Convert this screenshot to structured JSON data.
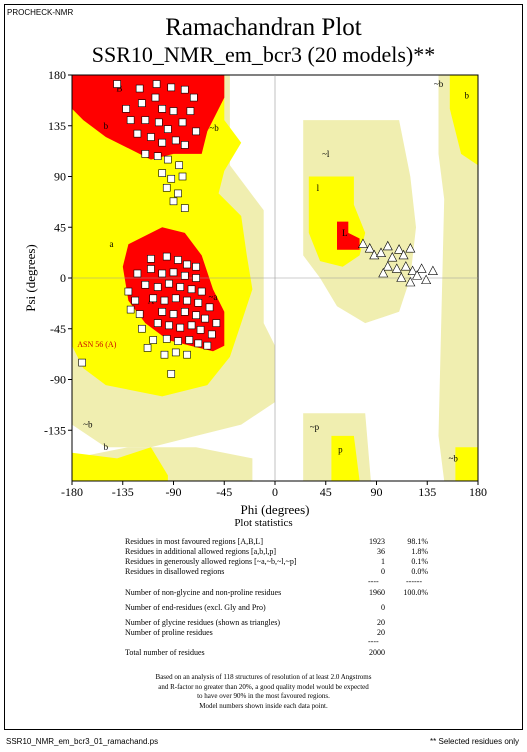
{
  "header": {
    "program": "PROCHECK-NMR",
    "title": "Ramachandran Plot",
    "subtitle": "SSR10_NMR_em_bcr3 (20 models)**"
  },
  "footer": {
    "filename": "SSR10_NMR_em_bcr3_01_ramachand.ps",
    "note": "** Selected residues only"
  },
  "colors": {
    "core": "#ff0000",
    "allowed": "#ffff00",
    "generous": "#f0eeb0",
    "disallowed": "#ffffff"
  },
  "chart_data": {
    "type": "scatter",
    "xlabel": "Phi (degrees)",
    "ylabel": "Psi (degrees)",
    "xlim": [
      -180,
      180
    ],
    "ylim": [
      -180,
      180
    ],
    "xticks": [
      "-180",
      "-135",
      "-90",
      "-45",
      "0",
      "45",
      "90",
      "135",
      "180"
    ],
    "yticks": [
      "180",
      "135",
      "90",
      "45",
      "0",
      "-45",
      "-90",
      "-135"
    ],
    "region_labels": [
      {
        "text": "B",
        "phi": -138,
        "psi": 168
      },
      {
        "text": "b",
        "phi": -150,
        "psi": 135
      },
      {
        "text": "~b",
        "phi": -54,
        "psi": 133
      },
      {
        "text": "~b",
        "phi": -166,
        "psi": -130
      },
      {
        "text": "b",
        "phi": -150,
        "psi": -150
      },
      {
        "text": "a",
        "phi": -145,
        "psi": 30
      },
      {
        "text": "A",
        "phi": -110,
        "psi": -20
      },
      {
        "text": "~a",
        "phi": -55,
        "psi": -17
      },
      {
        "text": "~l",
        "phi": 45,
        "psi": 110
      },
      {
        "text": "l",
        "phi": 38,
        "psi": 80
      },
      {
        "text": "L",
        "phi": 62,
        "psi": 40
      },
      {
        "text": "~p",
        "phi": 35,
        "psi": -132
      },
      {
        "text": "p",
        "phi": 58,
        "psi": -152
      },
      {
        "text": "~b",
        "phi": 145,
        "psi": 172
      },
      {
        "text": "b",
        "phi": 170,
        "psi": 162
      },
      {
        "text": "~b",
        "phi": 158,
        "psi": -160
      }
    ],
    "outlier_label": "ASN 56 (A)",
    "series": [
      {
        "marker": "square",
        "points": [
          [
            -140,
            172
          ],
          [
            -120,
            168
          ],
          [
            -105,
            172
          ],
          [
            -92,
            169
          ],
          [
            -80,
            167
          ],
          [
            -72,
            160
          ],
          [
            -132,
            150
          ],
          [
            -118,
            155
          ],
          [
            -106,
            160
          ],
          [
            -100,
            150
          ],
          [
            -90,
            148
          ],
          [
            -75,
            148
          ],
          [
            -128,
            140
          ],
          [
            -115,
            140
          ],
          [
            -103,
            138
          ],
          [
            -95,
            132
          ],
          [
            -82,
            138
          ],
          [
            -70,
            130
          ],
          [
            -122,
            128
          ],
          [
            -110,
            125
          ],
          [
            -100,
            120
          ],
          [
            -88,
            122
          ],
          [
            -80,
            118
          ],
          [
            -115,
            110
          ],
          [
            -104,
            108
          ],
          [
            -95,
            105
          ],
          [
            -85,
            100
          ],
          [
            -100,
            93
          ],
          [
            -92,
            88
          ],
          [
            -82,
            90
          ],
          [
            -96,
            80
          ],
          [
            -86,
            75
          ],
          [
            -90,
            68
          ],
          [
            -80,
            62
          ],
          [
            -110,
            17
          ],
          [
            -96,
            19
          ],
          [
            -86,
            16
          ],
          [
            -78,
            12
          ],
          [
            -70,
            10
          ],
          [
            -122,
            4
          ],
          [
            -110,
            8
          ],
          [
            -100,
            4
          ],
          [
            -90,
            5
          ],
          [
            -80,
            2
          ],
          [
            -70,
            0
          ],
          [
            -115,
            -6
          ],
          [
            -104,
            -8
          ],
          [
            -94,
            -5
          ],
          [
            -84,
            -8
          ],
          [
            -74,
            -10
          ],
          [
            -65,
            -12
          ],
          [
            -108,
            -18
          ],
          [
            -98,
            -20
          ],
          [
            -88,
            -18
          ],
          [
            -78,
            -20
          ],
          [
            -68,
            -22
          ],
          [
            -58,
            -26
          ],
          [
            -100,
            -30
          ],
          [
            -90,
            -32
          ],
          [
            -80,
            -30
          ],
          [
            -70,
            -33
          ],
          [
            -62,
            -36
          ],
          [
            -52,
            -40
          ],
          [
            -94,
            -42
          ],
          [
            -84,
            -44
          ],
          [
            -74,
            -42
          ],
          [
            -66,
            -46
          ],
          [
            -56,
            -50
          ],
          [
            -96,
            -54
          ],
          [
            -86,
            -56
          ],
          [
            -76,
            -55
          ],
          [
            -68,
            -58
          ],
          [
            -60,
            -60
          ],
          [
            -88,
            -66
          ],
          [
            -78,
            -68
          ],
          [
            -124,
            -20
          ],
          [
            -120,
            -32
          ],
          [
            -130,
            -12
          ],
          [
            -128,
            -28
          ],
          [
            -118,
            -45
          ],
          [
            -108,
            -55
          ],
          [
            -104,
            -40
          ],
          [
            -113,
            -62
          ],
          [
            -98,
            -68
          ],
          [
            -92,
            -85
          ],
          [
            -171,
            -75
          ]
        ]
      },
      {
        "marker": "triangle",
        "points": [
          [
            78,
            30
          ],
          [
            84,
            26
          ],
          [
            88,
            20
          ],
          [
            94,
            22
          ],
          [
            100,
            28
          ],
          [
            104,
            18
          ],
          [
            110,
            25
          ],
          [
            114,
            20
          ],
          [
            120,
            26
          ],
          [
            100,
            10
          ],
          [
            108,
            8
          ],
          [
            116,
            10
          ],
          [
            122,
            6
          ],
          [
            130,
            8
          ],
          [
            96,
            4
          ],
          [
            112,
            0
          ],
          [
            126,
            2
          ],
          [
            140,
            6
          ],
          [
            120,
            -4
          ],
          [
            134,
            -2
          ]
        ]
      }
    ],
    "statistics": [
      {
        "label": "Residues in most favoured regions  [A,B,L]",
        "count": "1923",
        "percent": "98.1%"
      },
      {
        "label": "Residues in additional allowed regions  [a,b,l,p]",
        "count": "36",
        "percent": "1.8%"
      },
      {
        "label": "Residues in generously allowed regions  [~a,~b,~l,~p]",
        "count": "1",
        "percent": "0.1%"
      },
      {
        "label": "Residues in disallowed regions",
        "count": "0",
        "percent": "0.0%"
      },
      {
        "label": "Number of non-glycine and non-proline residues",
        "count": "1960",
        "percent": "100.0%"
      },
      {
        "label": "Number of end-residues (excl. Gly and Pro)",
        "count": "0",
        "percent": ""
      },
      {
        "label": "Number of glycine residues (shown as triangles)",
        "count": "20",
        "percent": ""
      },
      {
        "label": "Number of proline residues",
        "count": "20",
        "percent": ""
      },
      {
        "label": "Total number of residues",
        "count": "2000",
        "percent": ""
      }
    ],
    "stats_title": "Plot statistics",
    "notes": [
      "Based on an analysis of 118 structures of resolution of at least 2.0 Angstroms",
      "and R-factor no greater than 20%, a good quality model would be expected",
      "to have over 90% in the most favoured regions.",
      "Model numbers shown inside each data point."
    ]
  }
}
